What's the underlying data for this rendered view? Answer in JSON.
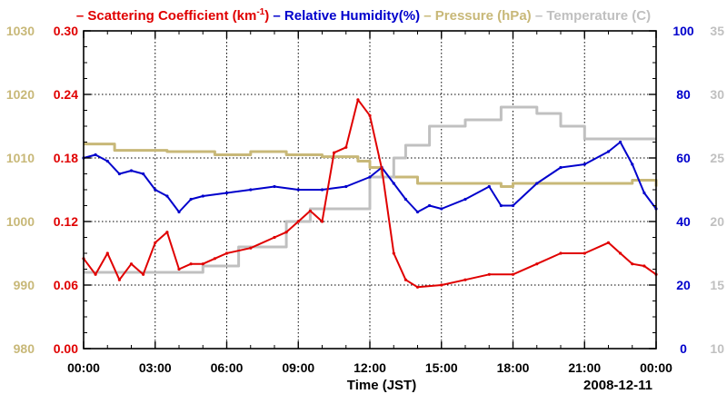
{
  "chart_data": {
    "type": "line",
    "date_label": "2008-12-11",
    "xlabel": "Time (JST)",
    "x_ticks": [
      "00:00",
      "03:00",
      "06:00",
      "09:00",
      "12:00",
      "15:00",
      "18:00",
      "21:00",
      "00:00"
    ],
    "x_range_hours": [
      0,
      24
    ],
    "title_parts": [
      {
        "text": "– Scattering Coefficient (km",
        "sup": "-1",
        "after": ")",
        "color": "#e00000"
      },
      {
        "text": " – Relative Humidity(%)",
        "sup": "",
        "after": "",
        "color": "#0000cc"
      },
      {
        "text": " – Pressure (hPa)",
        "sup": "",
        "after": "",
        "color": "#c8b878"
      },
      {
        "text": " – Temperature (",
        "sup": "",
        "after": "C)",
        "color": "#c0c0c0"
      }
    ],
    "axes": {
      "pressure": {
        "color": "#c8b878",
        "range": [
          980,
          1030
        ],
        "ticks": [
          "980",
          "990",
          "1000",
          "1010",
          "1020",
          "1030"
        ]
      },
      "scattering": {
        "color": "#e00000",
        "range": [
          0.0,
          0.3
        ],
        "ticks": [
          "0.00",
          "0.06",
          "0.12",
          "0.18",
          "0.24",
          "0.30"
        ]
      },
      "humidity": {
        "color": "#0000cc",
        "range": [
          0,
          100
        ],
        "ticks": [
          "0",
          "20",
          "40",
          "60",
          "80",
          "100"
        ]
      },
      "temperature": {
        "color": "#c0c0c0",
        "range": [
          10,
          35
        ],
        "ticks": [
          "10",
          "15",
          "20",
          "25",
          "30",
          "35"
        ]
      }
    },
    "series": [
      {
        "name": "Pressure (hPa)",
        "axis": "pressure",
        "color": "#c8b878",
        "step": true,
        "x": [
          0,
          1.3,
          3.5,
          5.5,
          7.0,
          8.5,
          10.0,
          11.5,
          12.0,
          12.5,
          14.0,
          16.0,
          17.5,
          18.0,
          19.0,
          20.0,
          21.0,
          22.0,
          23.0,
          24.0
        ],
        "y": [
          1012.2,
          1011.2,
          1011.0,
          1010.5,
          1011.0,
          1010.5,
          1010.2,
          1009.5,
          1008.5,
          1007.0,
          1006.0,
          1006.0,
          1005.5,
          1006.0,
          1006.0,
          1006.0,
          1006.0,
          1006.0,
          1006.5,
          1005.5
        ]
      },
      {
        "name": "Temperature (C)",
        "axis": "temperature",
        "color": "#c0c0c0",
        "step": true,
        "x": [
          0,
          5.0,
          6.5,
          8.5,
          9.5,
          12.0,
          13.0,
          13.5,
          14.5,
          16.0,
          17.5,
          18.0,
          19.0,
          20.0,
          21.0,
          24.0
        ],
        "y": [
          16.0,
          16.5,
          18.0,
          20.0,
          21.0,
          23.5,
          25.0,
          26.0,
          27.5,
          28.0,
          29.0,
          29.0,
          28.5,
          27.5,
          26.5,
          26.5
        ]
      },
      {
        "name": "Relative Humidity(%)",
        "axis": "humidity",
        "color": "#0000cc",
        "step": false,
        "x": [
          0,
          0.5,
          1.0,
          1.5,
          2.0,
          2.5,
          3.0,
          3.5,
          4.0,
          4.5,
          5.0,
          6.0,
          7.0,
          8.0,
          9.0,
          10.0,
          11.0,
          12.0,
          12.5,
          13.0,
          13.5,
          14.0,
          14.5,
          15.0,
          16.0,
          17.0,
          17.5,
          18.0,
          19.0,
          20.0,
          21.0,
          22.0,
          22.5,
          23.0,
          23.5,
          24.0
        ],
        "y": [
          60,
          61,
          59,
          55,
          56,
          55,
          50,
          48,
          43,
          47,
          48,
          49,
          50,
          51,
          50,
          50,
          51,
          54,
          57,
          52,
          47,
          43,
          45,
          44,
          47,
          51,
          45,
          45,
          52,
          57,
          58,
          62,
          65,
          58,
          49,
          44
        ]
      },
      {
        "name": "Scattering Coefficient (km-1)",
        "axis": "scattering",
        "color": "#e00000",
        "step": false,
        "x": [
          0,
          0.5,
          1.0,
          1.5,
          2.0,
          2.5,
          3.0,
          3.5,
          4.0,
          4.5,
          5.0,
          5.5,
          6.0,
          7.0,
          8.0,
          8.5,
          9.0,
          9.5,
          10.0,
          10.5,
          11.0,
          11.5,
          12.0,
          12.5,
          13.0,
          13.5,
          14.0,
          15.0,
          16.0,
          17.0,
          18.0,
          19.0,
          20.0,
          21.0,
          22.0,
          22.5,
          23.0,
          23.5,
          24.0
        ],
        "y": [
          0.085,
          0.07,
          0.09,
          0.065,
          0.08,
          0.07,
          0.1,
          0.11,
          0.075,
          0.08,
          0.08,
          0.085,
          0.09,
          0.095,
          0.105,
          0.11,
          0.12,
          0.13,
          0.12,
          0.185,
          0.19,
          0.235,
          0.22,
          0.17,
          0.09,
          0.065,
          0.058,
          0.06,
          0.065,
          0.07,
          0.07,
          0.08,
          0.09,
          0.09,
          0.1,
          0.09,
          0.08,
          0.078,
          0.07
        ]
      }
    ]
  }
}
